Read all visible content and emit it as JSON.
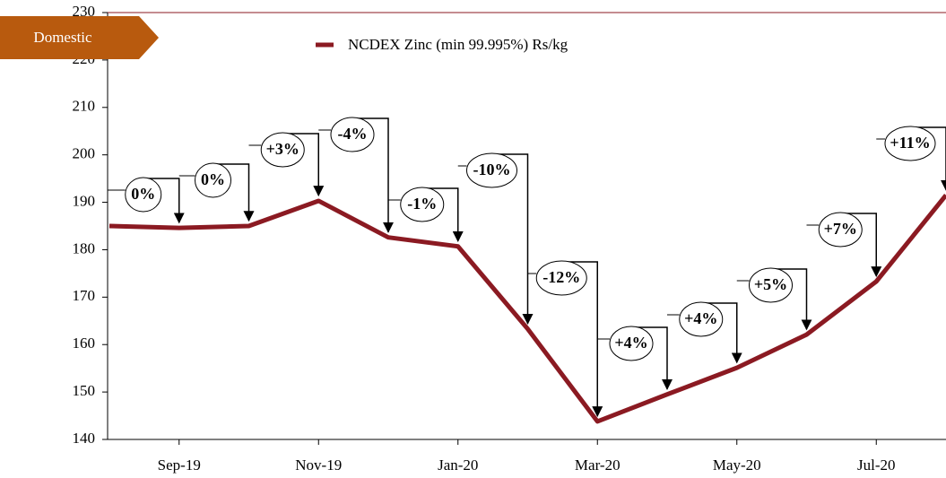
{
  "chart_data": {
    "type": "line",
    "badge": "Domestic",
    "categories": [
      null,
      "Sep-19",
      null,
      "Nov-19",
      null,
      "Jan-20",
      null,
      "Mar-20",
      null,
      "May-20",
      null,
      "Jul-20",
      null
    ],
    "series": [
      {
        "name": "NCDEX Zinc (min 99.995%) Rs/kg",
        "color": "#8b1a22",
        "values": [
          185.0,
          184.6,
          185.0,
          190.3,
          182.6,
          180.7,
          163.3,
          143.8,
          149.5,
          155.1,
          162.1,
          173.3,
          191.5
        ]
      }
    ],
    "annotations": [
      "0%",
      "0%",
      "+3%",
      "-4%",
      "-1%",
      "-10%",
      "-12%",
      "+4%",
      "+4%",
      "+5%",
      "+7%",
      "+11%"
    ],
    "ylim": [
      140,
      230
    ],
    "yticks": [
      140,
      150,
      160,
      170,
      180,
      190,
      200,
      210,
      220,
      230
    ],
    "legend": "top"
  }
}
